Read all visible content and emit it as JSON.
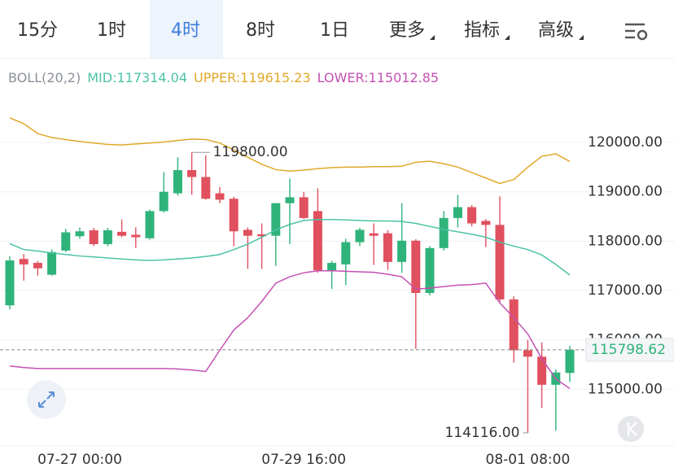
{
  "toolbar": {
    "tabs": [
      "15分",
      "1时",
      "4时",
      "8时",
      "1日",
      "更多",
      "指标",
      "高级"
    ],
    "active": 2
  },
  "chart_data": {
    "type": "candlestick",
    "indicator_title": "BOLL(20,2)",
    "categories": [
      null,
      null,
      null,
      null,
      null,
      "07-27 00:00",
      null,
      null,
      null,
      null,
      null,
      null,
      null,
      null,
      null,
      null,
      null,
      null,
      null,
      null,
      null,
      "07-29 16:00",
      null,
      null,
      null,
      null,
      null,
      null,
      null,
      null,
      null,
      null,
      null,
      null,
      null,
      null,
      null,
      "08-01 08:00",
      null,
      null,
      null
    ],
    "open": [
      116700,
      117640,
      117560,
      117320,
      117810,
      118100,
      118220,
      117940,
      118190,
      118130,
      118060,
      118610,
      118970,
      119440,
      119300,
      118970,
      118860,
      118230,
      118140,
      118110,
      118770,
      118890,
      118610,
      117410,
      117530,
      117980,
      118160,
      118160,
      117580,
      118010,
      116950,
      117860,
      118470,
      118690,
      118410,
      118330,
      116820,
      115790,
      115660,
      115090,
      115330
    ],
    "high": [
      117690,
      117740,
      117600,
      117830,
      118250,
      118280,
      118270,
      118270,
      118440,
      118280,
      118640,
      119400,
      119700,
      119800,
      119740,
      119100,
      118900,
      118280,
      118360,
      118770,
      119270,
      119000,
      119070,
      117600,
      118050,
      118270,
      118360,
      118220,
      118770,
      118040,
      117900,
      118610,
      118940,
      118730,
      118450,
      118910,
      116880,
      116000,
      115950,
      115400,
      115880
    ],
    "low": [
      116620,
      117200,
      117300,
      117300,
      117780,
      118050,
      117900,
      117900,
      118080,
      117860,
      118030,
      118580,
      118920,
      118940,
      118840,
      118770,
      117900,
      117440,
      117440,
      117500,
      117940,
      118450,
      117360,
      117030,
      117110,
      117900,
      117520,
      117420,
      117360,
      115820,
      116900,
      117810,
      118280,
      118300,
      117880,
      116770,
      115540,
      114116,
      114620,
      114160,
      115150
    ],
    "close": [
      117610,
      117530,
      117450,
      117780,
      118180,
      118200,
      117940,
      118220,
      118110,
      118080,
      118610,
      119000,
      119440,
      119300,
      118860,
      118840,
      118200,
      118110,
      118100,
      118770,
      118890,
      118470,
      117410,
      117560,
      117980,
      118230,
      118110,
      117580,
      118010,
      116950,
      117860,
      118470,
      118690,
      118360,
      118330,
      116820,
      115790,
      115660,
      115090,
      115340,
      115798.62
    ],
    "up_color": "#2fb37a",
    "down_color": "#e0505e",
    "series": [
      {
        "name": "MID:117314.04",
        "color": "#4cc2a6",
        "values": [
          117950,
          117830,
          117800,
          117760,
          117730,
          117700,
          117680,
          117660,
          117640,
          117620,
          117610,
          117620,
          117640,
          117660,
          117690,
          117730,
          117830,
          117940,
          118080,
          118230,
          118340,
          118420,
          118440,
          118440,
          118430,
          118420,
          118410,
          118410,
          118400,
          118360,
          118300,
          118240,
          118190,
          118140,
          118080,
          117980,
          117900,
          117830,
          117720,
          117530,
          117314.04
        ]
      },
      {
        "name": "UPPER:119615.23",
        "color": "#e2a82a",
        "values": [
          120500,
          120380,
          120180,
          120100,
          120060,
          120020,
          119990,
          119960,
          119950,
          119970,
          119990,
          120010,
          120040,
          120070,
          120060,
          119990,
          119850,
          119700,
          119560,
          119450,
          119420,
          119440,
          119470,
          119490,
          119500,
          119500,
          119510,
          119510,
          119520,
          119600,
          119620,
          119570,
          119500,
          119390,
          119280,
          119170,
          119250,
          119500,
          119720,
          119770,
          119615.23
        ]
      },
      {
        "name": "LOWER:115012.85",
        "color": "#c650b4",
        "values": [
          115470,
          115440,
          115420,
          115420,
          115420,
          115420,
          115420,
          115420,
          115420,
          115420,
          115420,
          115420,
          115410,
          115390,
          115360,
          115790,
          116200,
          116450,
          116780,
          117150,
          117280,
          117360,
          117400,
          117400,
          117390,
          117380,
          117370,
          117330,
          117280,
          117030,
          117050,
          117080,
          117110,
          117120,
          117150,
          116750,
          116450,
          116120,
          115620,
          115210,
          115012.85
        ]
      }
    ],
    "ylim": [
      113900,
      121700
    ],
    "yticks": [
      {
        "value": 120000,
        "label": "120000.00"
      },
      {
        "value": 119000,
        "label": "119000.00"
      },
      {
        "value": 118000,
        "label": "118000.00"
      },
      {
        "value": 117000,
        "label": "117000.00"
      },
      {
        "value": 116000,
        "label": "116000.00"
      },
      {
        "value": 115000,
        "label": "115000.00"
      }
    ],
    "grid": true,
    "annotations": [
      {
        "index": 13,
        "value": 119800,
        "label": "119800.00"
      },
      {
        "index": 37,
        "value": 114116,
        "label": "114116.00"
      }
    ],
    "last_price": {
      "value": 115798.62,
      "label": "115798.62"
    }
  }
}
